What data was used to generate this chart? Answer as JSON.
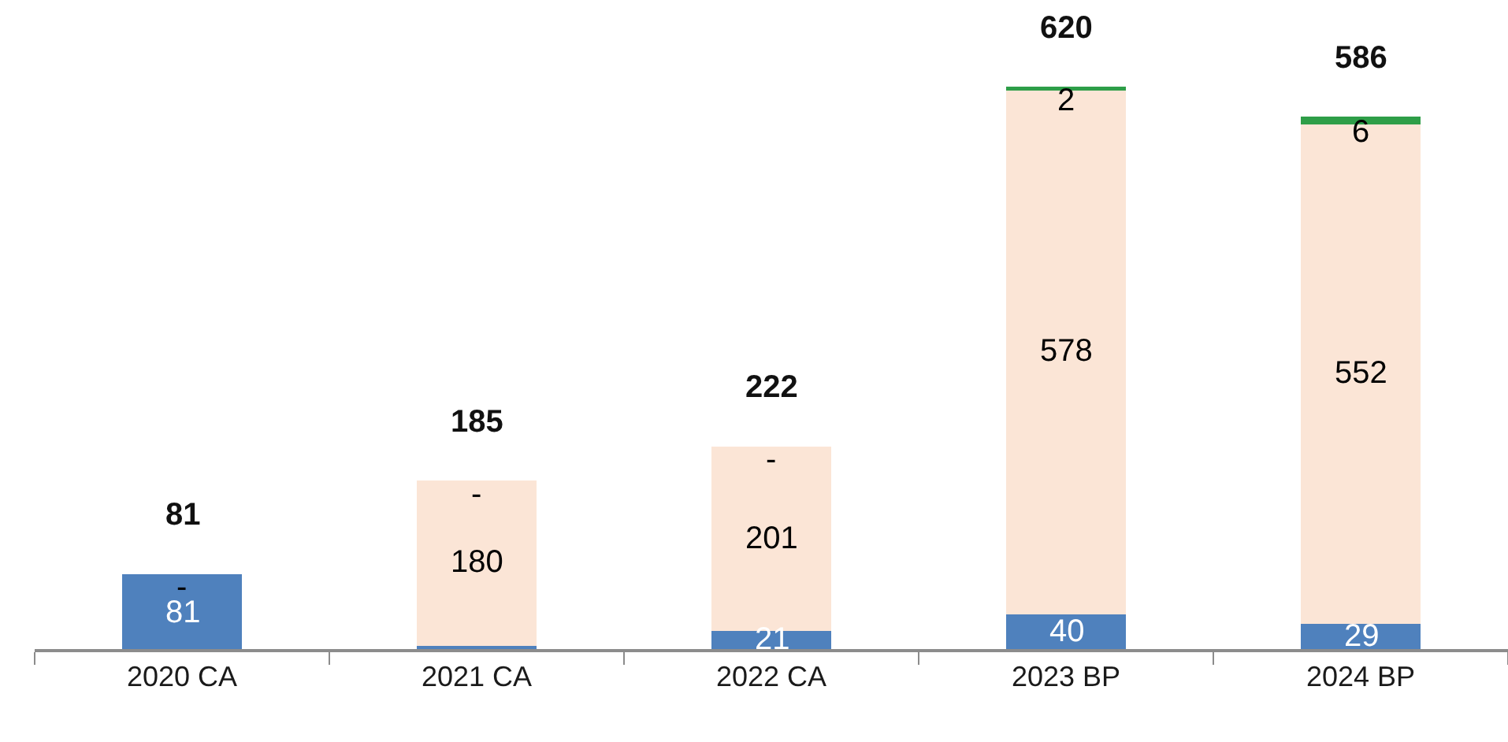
{
  "chart_data": {
    "type": "bar",
    "stacked": true,
    "categories": [
      "2020 CA",
      "2021 CA",
      "2022 CA",
      "2023 BP",
      "2024 BP"
    ],
    "series": [
      {
        "color": "#4f81bd",
        "values": [
          81,
          5,
          21,
          40,
          29
        ],
        "value_labels": [
          "81",
          null,
          "21",
          "40",
          "29"
        ]
      },
      {
        "color": "#fbe5d6",
        "values": [
          0,
          180,
          201,
          578,
          552
        ],
        "value_labels": [
          "-",
          "180",
          "201",
          "578",
          "552"
        ]
      },
      {
        "color": "#2e9e48",
        "values": [
          0,
          0,
          0,
          2,
          6
        ],
        "value_labels": [
          null,
          "-",
          "-",
          "2",
          "6"
        ]
      }
    ],
    "totals": [
      "81",
      "185",
      "222",
      "620",
      "586"
    ],
    "tick_labels": "x"
  }
}
